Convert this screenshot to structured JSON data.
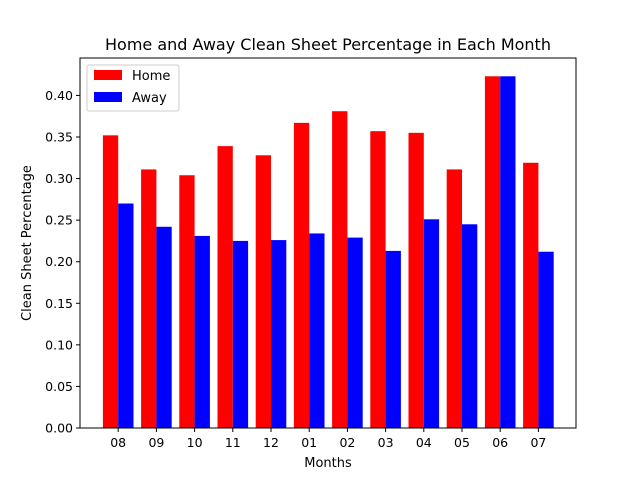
{
  "chart_data": {
    "type": "bar",
    "title": "Home and Away Clean Sheet Percentage in Each Month",
    "xlabel": "Months",
    "ylabel": "Clean Sheet Percentage",
    "categories": [
      "08",
      "09",
      "10",
      "11",
      "12",
      "01",
      "02",
      "03",
      "04",
      "05",
      "06",
      "07"
    ],
    "series": [
      {
        "name": "Home",
        "color": "#ff0000",
        "values": [
          0.352,
          0.311,
          0.304,
          0.339,
          0.328,
          0.367,
          0.381,
          0.357,
          0.355,
          0.311,
          0.423,
          0.319
        ]
      },
      {
        "name": "Away",
        "color": "#0000ff",
        "values": [
          0.27,
          0.242,
          0.231,
          0.225,
          0.226,
          0.234,
          0.229,
          0.213,
          0.251,
          0.245,
          0.423,
          0.212
        ]
      }
    ],
    "ylim": [
      0,
      0.445
    ],
    "yticks": [
      "0.00",
      "0.05",
      "0.10",
      "0.15",
      "0.20",
      "0.25",
      "0.30",
      "0.35",
      "0.40"
    ],
    "grid": false,
    "legend": "top-left"
  }
}
